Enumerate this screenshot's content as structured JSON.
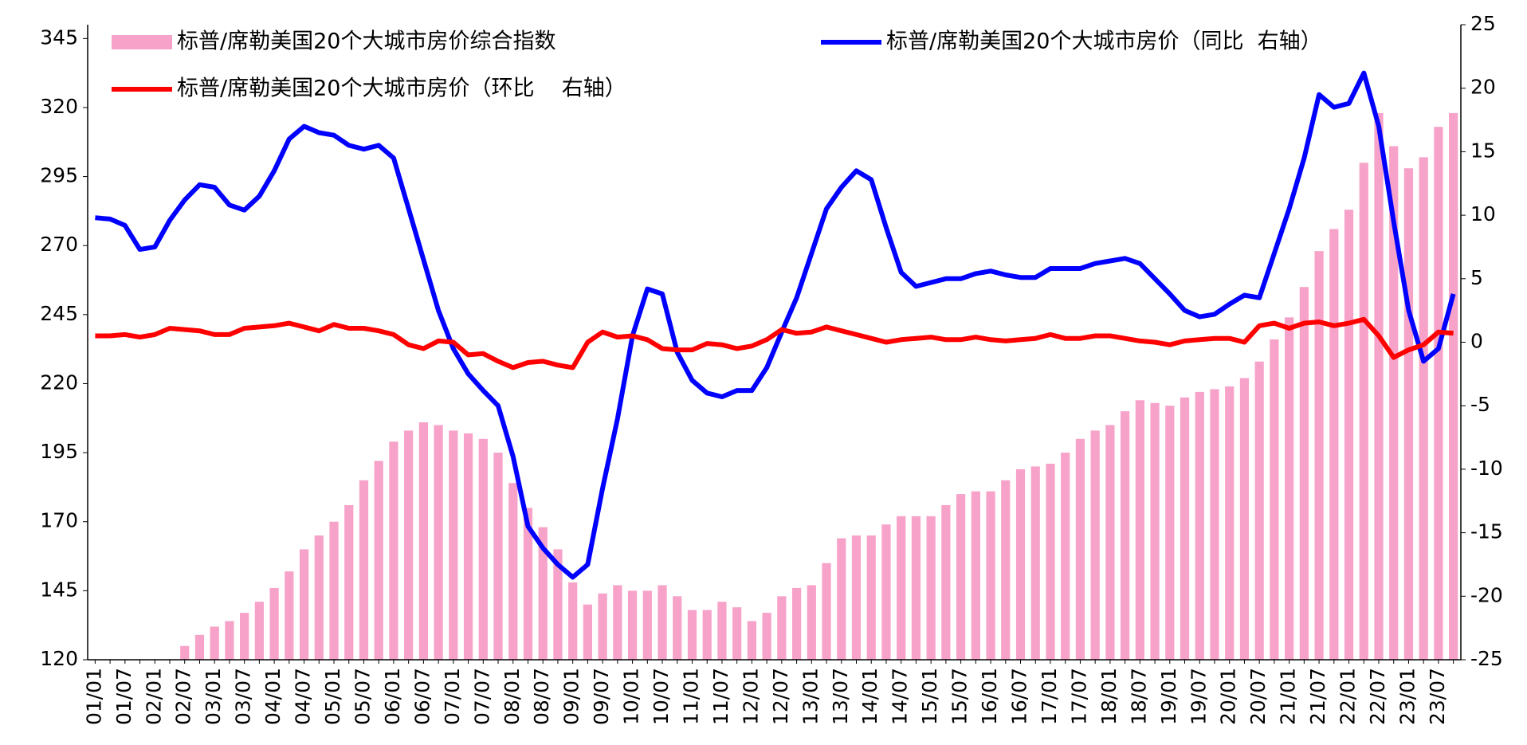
{
  "chart_data": {
    "type": "bar-line",
    "categories": [
      "01/01",
      null,
      "01/07",
      null,
      "02/01",
      null,
      "02/07",
      null,
      "03/01",
      null,
      "03/07",
      null,
      "04/01",
      null,
      "04/07",
      null,
      "05/01",
      null,
      "05/07",
      null,
      "06/01",
      null,
      "06/07",
      null,
      "07/01",
      null,
      "07/07",
      null,
      "08/01",
      null,
      "08/07",
      null,
      "09/01",
      null,
      "09/07",
      null,
      "10/01",
      null,
      "10/07",
      null,
      "11/01",
      null,
      "11/07",
      null,
      "12/01",
      null,
      "12/07",
      null,
      "13/01",
      null,
      "13/07",
      null,
      "14/01",
      null,
      "14/07",
      null,
      "15/01",
      null,
      "15/07",
      null,
      "16/01",
      null,
      "16/07",
      null,
      "17/01",
      null,
      "17/07",
      null,
      "18/01",
      null,
      "18/07",
      null,
      "19/01",
      null,
      "19/07",
      null,
      "20/01",
      null,
      "20/07",
      null,
      "21/01",
      null,
      "21/07",
      null,
      "22/01",
      null,
      "22/07",
      null,
      "23/01",
      null,
      "23/07",
      null
    ],
    "series": [
      {
        "name": "标普/席勒美国20个大城市房价综合指数",
        "type": "bar",
        "color": "#f7a3c9",
        "values": [
          108,
          110,
          113,
          115,
          117,
          120,
          125,
          129,
          132,
          134,
          137,
          141,
          146,
          152,
          160,
          165,
          170,
          176,
          185,
          192,
          199,
          203,
          206,
          205,
          203,
          202,
          200,
          195,
          184,
          175,
          168,
          160,
          148,
          140,
          144,
          147,
          145,
          145,
          147,
          143,
          138,
          138,
          141,
          139,
          134,
          137,
          143,
          146,
          147,
          155,
          164,
          165,
          165,
          169,
          172,
          172,
          172,
          176,
          180,
          181,
          181,
          185,
          189,
          190,
          191,
          195,
          200,
          203,
          205,
          210,
          214,
          213,
          212,
          215,
          217,
          218,
          219,
          222,
          228,
          236,
          244,
          255,
          268,
          276,
          283,
          300,
          318,
          306,
          298,
          302,
          313,
          318
        ]
      },
      {
        "name": "标普/席勒美国20个大城市房价（同比  右轴）",
        "type": "line",
        "axis": "y2",
        "color": "#0000ff",
        "values": [
          9.8,
          9.7,
          9.2,
          7.3,
          7.5,
          9.6,
          11.2,
          12.4,
          12.2,
          10.8,
          10.4,
          11.5,
          13.5,
          16.0,
          17.0,
          16.5,
          16.3,
          15.5,
          15.2,
          15.5,
          14.5,
          10.5,
          6.5,
          2.5,
          -0.5,
          -2.5,
          -3.8,
          -5,
          -9,
          -14.5,
          -16.2,
          -17.5,
          -18.5,
          -17.5,
          -11.5,
          -6,
          0.5,
          4.2,
          3.8,
          -0.8,
          -3,
          -4,
          -4.3,
          -3.8,
          -3.8,
          -2,
          0.8,
          3.5,
          7,
          10.5,
          12.2,
          13.5,
          12.8,
          9,
          5.5,
          4.4,
          4.7,
          5,
          5,
          5.4,
          5.6,
          5.3,
          5.1,
          5.1,
          5.8,
          5.8,
          5.8,
          6.2,
          6.4,
          6.6,
          6.2,
          5,
          3.8,
          2.5,
          2,
          2.2,
          3,
          3.7,
          3.5,
          7,
          10.5,
          14.5,
          19.5,
          18.5,
          18.8,
          21.2,
          17,
          9.5,
          2.5,
          -1.5,
          -0.5,
          3.8
        ]
      },
      {
        "name": "标普/席勒美国20个大城市房价（环比    右轴）",
        "type": "line",
        "axis": "y2",
        "color": "#ff0000",
        "values": [
          0.5,
          0.5,
          0.6,
          0.4,
          0.6,
          1.1,
          1.0,
          0.9,
          0.6,
          0.6,
          1.1,
          1.2,
          1.3,
          1.5,
          1.2,
          0.9,
          1.4,
          1.1,
          1.1,
          0.9,
          0.6,
          -0.2,
          -0.5,
          0.1,
          0.0,
          -1.0,
          -0.9,
          -1.5,
          -2.0,
          -1.6,
          -1.5,
          -1.8,
          -2.0,
          0.0,
          0.8,
          0.4,
          0.5,
          0.2,
          -0.5,
          -0.6,
          -0.6,
          -0.1,
          -0.2,
          -0.5,
          -0.3,
          0.2,
          1.0,
          0.7,
          0.8,
          1.2,
          0.9,
          0.6,
          0.3,
          0.0,
          0.2,
          0.3,
          0.4,
          0.2,
          0.2,
          0.4,
          0.2,
          0.1,
          0.2,
          0.3,
          0.6,
          0.3,
          0.3,
          0.5,
          0.5,
          0.3,
          0.1,
          0.0,
          -0.2,
          0.1,
          0.2,
          0.3,
          0.3,
          0.0,
          1.3,
          1.5,
          1.1,
          1.5,
          1.6,
          1.3,
          1.5,
          1.8,
          0.5,
          -1.2,
          -0.6,
          -0.2,
          0.8,
          0.7
        ]
      }
    ],
    "ylim": [
      120,
      350
    ],
    "yticks": [
      120,
      145,
      170,
      195,
      220,
      245,
      270,
      295,
      320,
      345
    ],
    "y2lim": [
      -25,
      25
    ],
    "y2ticks": [
      -25,
      -20,
      -15,
      -10,
      -5,
      0,
      5,
      10,
      15,
      20,
      25
    ]
  }
}
